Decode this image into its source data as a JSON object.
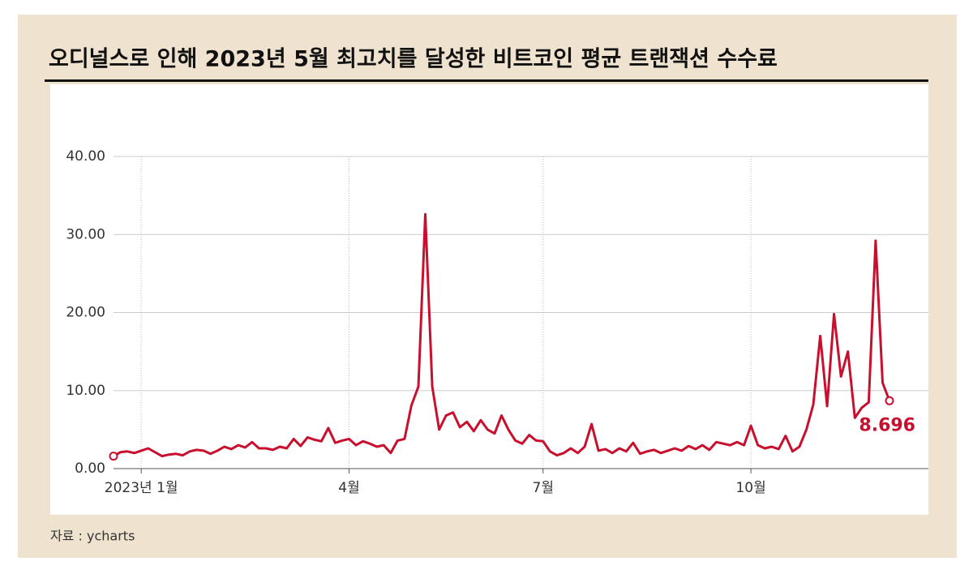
{
  "chart_data": {
    "type": "line",
    "title": "오디널스로 인해 2023년 5월 최고치를 달성한 비트코인 평균 트랜잭션 수수료",
    "source": "자료 : ycharts",
    "categories": [
      null,
      null,
      null,
      null,
      "2023년 1월",
      null,
      null,
      null,
      null,
      null,
      null,
      null,
      null,
      null,
      null,
      null,
      null,
      null,
      null,
      null,
      null,
      null,
      null,
      null,
      null,
      null,
      null,
      null,
      null,
      null,
      null,
      null,
      null,
      null,
      "4월",
      null,
      null,
      null,
      null,
      null,
      null,
      null,
      null,
      null,
      null,
      null,
      null,
      null,
      null,
      null,
      null,
      null,
      null,
      null,
      null,
      null,
      null,
      null,
      null,
      null,
      null,
      null,
      "7월",
      null,
      null,
      null,
      null,
      null,
      null,
      null,
      null,
      null,
      null,
      null,
      null,
      null,
      null,
      null,
      null,
      null,
      null,
      null,
      null,
      null,
      null,
      null,
      null,
      null,
      null,
      null,
      null,
      null,
      "10월",
      null,
      null,
      null,
      null,
      null,
      null,
      null,
      null,
      null,
      null,
      null,
      null,
      null,
      null,
      null,
      null,
      null,
      null,
      null,
      null
    ],
    "values": [
      1.6,
      2.1,
      2.2,
      2.0,
      2.3,
      2.6,
      2.1,
      1.6,
      1.8,
      1.9,
      1.7,
      2.2,
      2.4,
      2.3,
      1.9,
      2.3,
      2.8,
      2.5,
      3.0,
      2.7,
      3.4,
      2.6,
      2.6,
      2.4,
      2.8,
      2.6,
      3.8,
      2.9,
      4.0,
      3.7,
      3.5,
      5.2,
      3.3,
      3.6,
      3.8,
      3.0,
      3.5,
      3.2,
      2.8,
      3.0,
      2.0,
      3.6,
      3.8,
      8.1,
      10.5,
      32.6,
      10.5,
      5.0,
      6.8,
      7.2,
      5.3,
      6.0,
      4.8,
      6.2,
      5.0,
      4.5,
      6.8,
      5.0,
      3.6,
      3.2,
      4.3,
      3.6,
      3.5,
      2.2,
      1.7,
      2.0,
      2.6,
      2.0,
      2.8,
      5.7,
      2.3,
      2.5,
      2.0,
      2.6,
      2.2,
      3.3,
      1.9,
      2.2,
      2.4,
      2.0,
      2.3,
      2.6,
      2.3,
      2.9,
      2.5,
      3.0,
      2.4,
      3.4,
      3.2,
      3.0,
      3.4,
      3.0,
      5.5,
      3.0,
      2.6,
      2.8,
      2.5,
      4.2,
      2.2,
      2.8,
      5.0,
      8.2,
      17.0,
      8.0,
      19.8,
      11.8,
      15.0,
      6.5,
      7.8,
      8.5,
      29.2,
      11.0,
      8.696
    ],
    "color": "#c8102e",
    "ylim": [
      0,
      40
    ],
    "yticks": [
      {
        "value": 0,
        "label": "0.00"
      },
      {
        "value": 10,
        "label": "10.00"
      },
      {
        "value": 20,
        "label": "20.00"
      },
      {
        "value": 30,
        "label": "30.00"
      },
      {
        "value": 40,
        "label": "40.00"
      }
    ],
    "grid": true
  }
}
